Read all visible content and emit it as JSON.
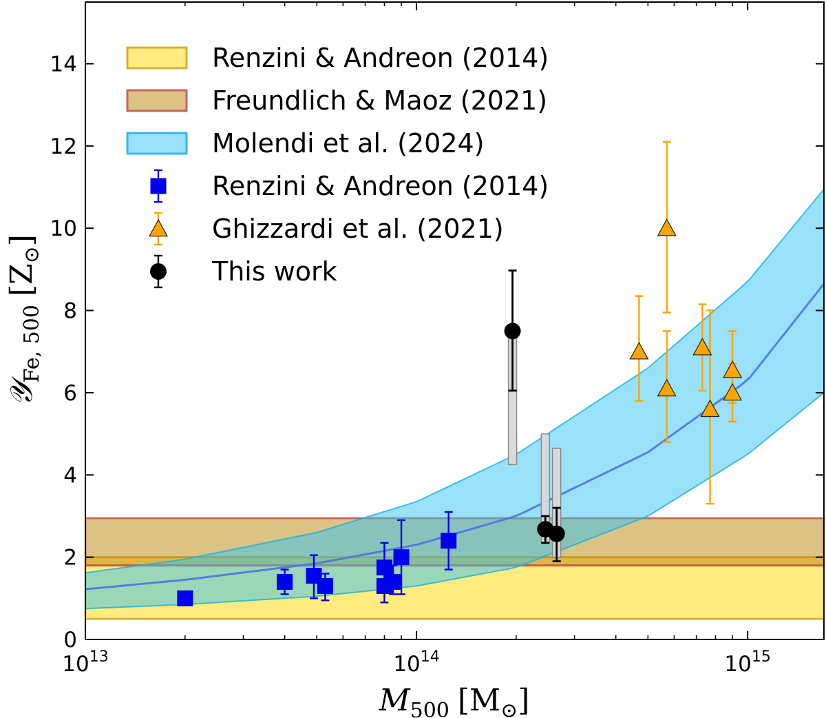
{
  "chart_data": {
    "type": "scatter",
    "x_scale": "log",
    "xlim": [
      10000000000000.0,
      1700000000000000.0
    ],
    "ylim": [
      0,
      15.5
    ],
    "xlabel": {
      "main": "M",
      "sub": "500",
      "unit": "[M",
      "unit_sub": "⊙",
      "unit_close": "]"
    },
    "ylabel": {
      "main": "𝒴",
      "sub": "Fe, 500",
      "unit": "[Z",
      "unit_sub": "⊙",
      "unit_close": "]"
    },
    "x_ticks": [
      {
        "value": 10000000000000.0,
        "base": "10",
        "exp": "13"
      },
      {
        "value": 100000000000000.0,
        "base": "10",
        "exp": "14"
      },
      {
        "value": 1000000000000000.0,
        "base": "10",
        "exp": "15"
      }
    ],
    "y_ticks": [
      {
        "value": 0,
        "label": "0"
      },
      {
        "value": 2,
        "label": "2"
      },
      {
        "value": 4,
        "label": "4"
      },
      {
        "value": 6,
        "label": "6"
      },
      {
        "value": 8,
        "label": "8"
      },
      {
        "value": 10,
        "label": "10"
      },
      {
        "value": 12,
        "label": "12"
      },
      {
        "value": 14,
        "label": "14"
      }
    ],
    "bands": [
      {
        "name": "Renzini & Andreon (2014)",
        "type": "horizontal",
        "y_low": 0.5,
        "y_high": 2.0,
        "fill": "#ffd700",
        "stroke": "#d4a017",
        "opacity": 0.5,
        "mid": 1.8
      },
      {
        "name": "Freundlich & Maoz (2021)",
        "type": "horizontal",
        "y_low": 1.8,
        "y_high": 2.95,
        "fill": "#b8860b",
        "stroke": "#c0504d",
        "opacity": 0.5
      },
      {
        "name": "Molendi et al. (2024)",
        "type": "curve",
        "fill": "#33c4f2",
        "stroke": "#1ab0e0",
        "opacity": 0.5,
        "x": [
          10000000000000.0,
          20000000000000.0,
          50000000000000.0,
          100000000000000.0,
          200000000000000.0,
          500000000000000.0,
          1000000000000000.0,
          1700000000000000.0
        ],
        "y_mid": [
          1.22,
          1.45,
          1.85,
          2.3,
          3.0,
          4.55,
          6.3,
          8.65
        ],
        "y_low": [
          0.75,
          0.85,
          1.05,
          1.3,
          1.75,
          3.0,
          4.5,
          6.0
        ],
        "y_high": [
          1.62,
          1.95,
          2.6,
          3.35,
          4.5,
          6.6,
          8.7,
          10.95
        ]
      }
    ],
    "series": [
      {
        "name": "Renzini & Andreon (2014)",
        "marker": "square",
        "color": "#0000ee",
        "points": [
          {
            "x": 20000000000000.0,
            "y": 1.0,
            "lo": 1.0,
            "hi": 1.0
          },
          {
            "x": 40000000000000.0,
            "y": 1.4,
            "lo": 1.1,
            "hi": 1.7
          },
          {
            "x": 49000000000000.0,
            "y": 1.55,
            "lo": 1.0,
            "hi": 2.05
          },
          {
            "x": 53000000000000.0,
            "y": 1.3,
            "lo": 0.95,
            "hi": 1.6
          },
          {
            "x": 80000000000000.0,
            "y": 1.3,
            "lo": 0.9,
            "hi": 1.7
          },
          {
            "x": 80000000000000.0,
            "y": 1.75,
            "lo": 1.15,
            "hi": 2.35
          },
          {
            "x": 85000000000000.0,
            "y": 1.4,
            "lo": 1.1,
            "hi": 1.8
          },
          {
            "x": 90000000000000.0,
            "y": 2.0,
            "lo": 1.1,
            "hi": 2.9
          },
          {
            "x": 125000000000000.0,
            "y": 2.4,
            "lo": 1.7,
            "hi": 3.1
          }
        ]
      },
      {
        "name": "Ghizzardi et al. (2021)",
        "marker": "triangle",
        "color": "#ffa500",
        "points": [
          {
            "x": 470000000000000.0,
            "y": 7.0,
            "lo": 5.8,
            "hi": 8.35
          },
          {
            "x": 570000000000000.0,
            "y": 10.0,
            "lo": 7.95,
            "hi": 12.1
          },
          {
            "x": 570000000000000.0,
            "y": 6.1,
            "lo": 4.8,
            "hi": 7.5
          },
          {
            "x": 730000000000000.0,
            "y": 7.1,
            "lo": 6.05,
            "hi": 8.15
          },
          {
            "x": 770000000000000.0,
            "y": 5.6,
            "lo": 3.3,
            "hi": 8.0
          },
          {
            "x": 900000000000000.0,
            "y": 6.55,
            "lo": 5.75,
            "hi": 7.5
          },
          {
            "x": 900000000000000.0,
            "y": 6.0,
            "lo": 5.3,
            "hi": 6.7
          }
        ]
      },
      {
        "name": "This work",
        "marker": "circle",
        "color": "#000000",
        "points": [
          {
            "x": 195000000000000.0,
            "y": 7.5,
            "lo": 6.05,
            "hi": 8.97,
            "box_lo": 4.25,
            "box_hi": 7.45
          },
          {
            "x": 245000000000000.0,
            "y": 2.68,
            "lo": 2.35,
            "hi": 3.0,
            "box_lo": 2.35,
            "box_hi": 5.0
          },
          {
            "x": 265000000000000.0,
            "y": 2.57,
            "lo": 1.9,
            "hi": 3.2,
            "box_lo": 2.0,
            "box_hi": 4.65
          }
        ]
      }
    ],
    "legend": {
      "position": "top-left",
      "entries": [
        {
          "label": "Renzini & Andreon (2014)",
          "kind": "band",
          "ref": 0
        },
        {
          "label": "Freundlich & Maoz (2021)",
          "kind": "band",
          "ref": 1
        },
        {
          "label": "Molendi et al. (2024)",
          "kind": "band",
          "ref": 2
        },
        {
          "label": "Renzini & Andreon (2014)",
          "kind": "marker",
          "ref": 0
        },
        {
          "label": "Ghizzardi et al. (2021)",
          "kind": "marker",
          "ref": 1
        },
        {
          "label": "This work",
          "kind": "marker",
          "ref": 2
        }
      ]
    }
  }
}
